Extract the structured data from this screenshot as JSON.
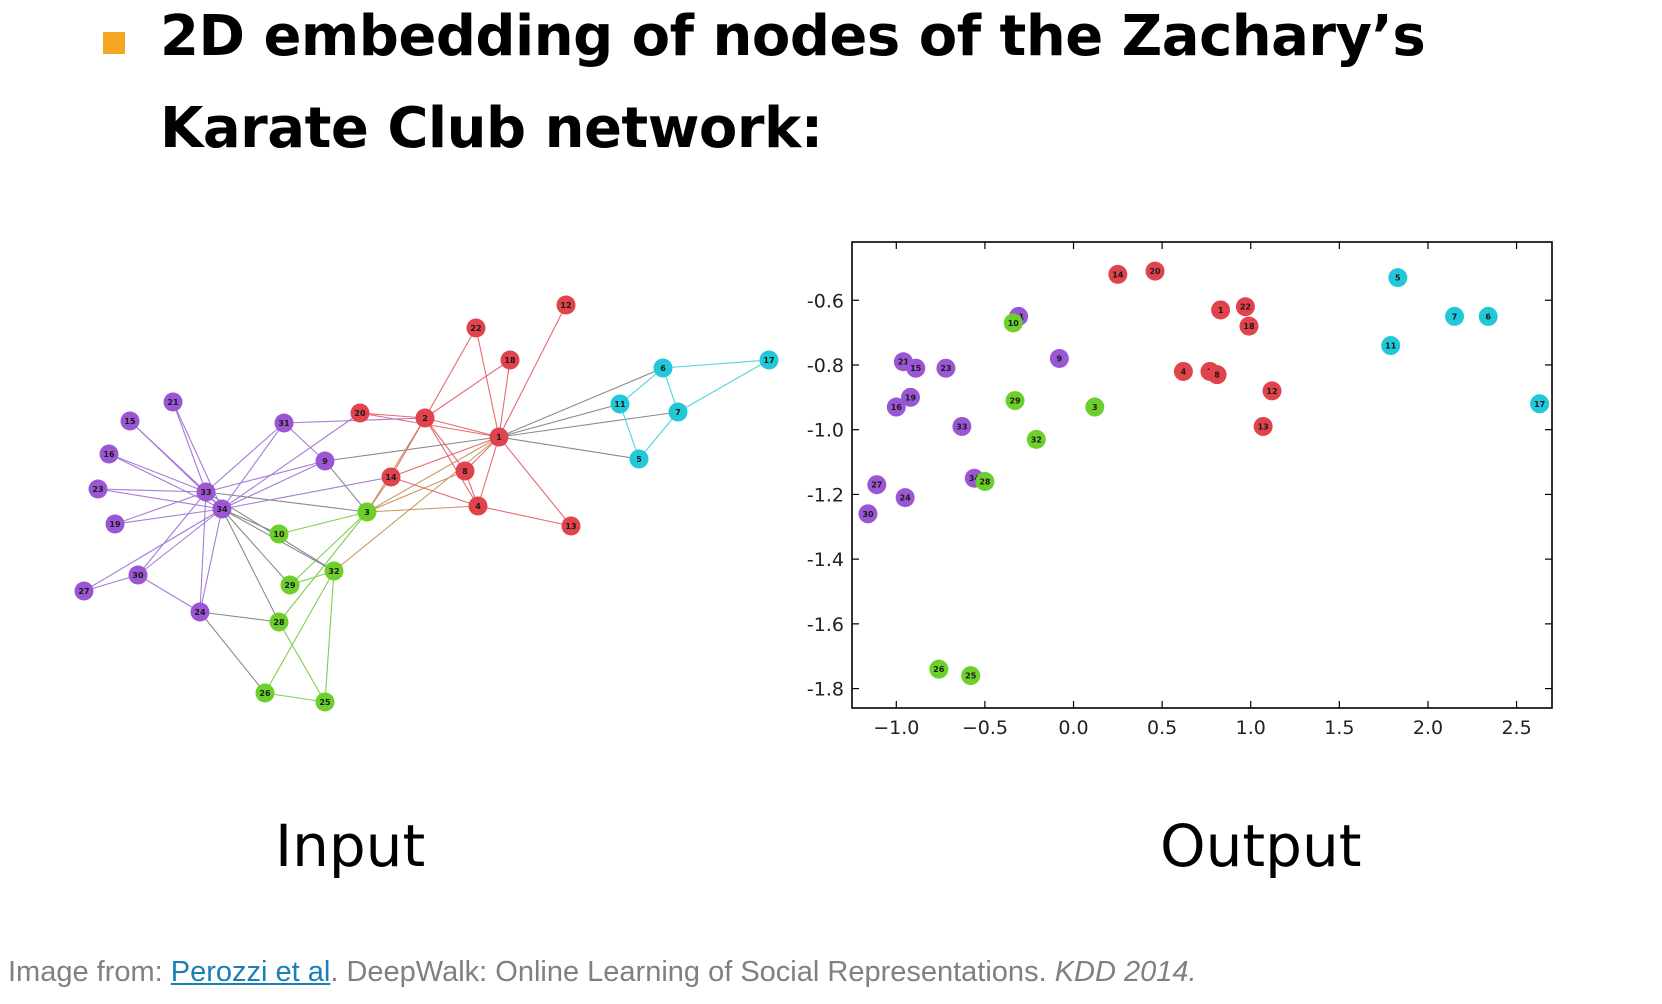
{
  "title": {
    "line1": "2D embedding of nodes of the Zachary’s",
    "line2": "Karate Club network:"
  },
  "colors": {
    "bullet": "#f5a623",
    "red": "#e0434b",
    "purple": "#9b57d3",
    "green": "#6ccf2b",
    "cyan": "#22c8d8",
    "edge_default": "#9a9a9a"
  },
  "input_graph": {
    "caption": "Input",
    "nodes": [
      {
        "id": "12",
        "group": "red"
      },
      {
        "id": "22",
        "group": "red"
      },
      {
        "id": "18",
        "group": "red"
      },
      {
        "id": "20",
        "group": "red"
      },
      {
        "id": "2",
        "group": "red"
      },
      {
        "id": "1",
        "group": "red"
      },
      {
        "id": "14",
        "group": "red"
      },
      {
        "id": "8",
        "group": "red"
      },
      {
        "id": "4",
        "group": "red"
      },
      {
        "id": "13",
        "group": "red"
      },
      {
        "id": "6",
        "group": "cyan"
      },
      {
        "id": "17",
        "group": "cyan"
      },
      {
        "id": "11",
        "group": "cyan"
      },
      {
        "id": "7",
        "group": "cyan"
      },
      {
        "id": "5",
        "group": "cyan"
      },
      {
        "id": "21",
        "group": "purple"
      },
      {
        "id": "15",
        "group": "purple"
      },
      {
        "id": "16",
        "group": "purple"
      },
      {
        "id": "23",
        "group": "purple"
      },
      {
        "id": "19",
        "group": "purple"
      },
      {
        "id": "27",
        "group": "purple"
      },
      {
        "id": "30",
        "group": "purple"
      },
      {
        "id": "24",
        "group": "purple"
      },
      {
        "id": "33",
        "group": "purple"
      },
      {
        "id": "34",
        "group": "purple"
      },
      {
        "id": "31",
        "group": "purple"
      },
      {
        "id": "9",
        "group": "purple"
      },
      {
        "id": "10",
        "group": "green"
      },
      {
        "id": "3",
        "group": "green"
      },
      {
        "id": "32",
        "group": "green"
      },
      {
        "id": "29",
        "group": "green"
      },
      {
        "id": "28",
        "group": "green"
      },
      {
        "id": "26",
        "group": "green"
      },
      {
        "id": "25",
        "group": "green"
      }
    ]
  },
  "chart_data": {
    "type": "scatter",
    "title": "",
    "caption": "Output",
    "xlabel": "",
    "ylabel": "",
    "xlim": [
      -1.25,
      2.7
    ],
    "ylim": [
      -1.86,
      -0.42
    ],
    "xticks": [
      "−1.0",
      "−0.5",
      "0.0",
      "0.5",
      "1.0",
      "1.5",
      "2.0",
      "2.5"
    ],
    "xtick_values": [
      -1.0,
      -0.5,
      0.0,
      0.5,
      1.0,
      1.5,
      2.0,
      2.5
    ],
    "yticks": [
      "-0.6",
      "-0.8",
      "-1.0",
      "-1.2",
      "-1.4",
      "-1.6",
      "-1.8"
    ],
    "ytick_values": [
      -0.6,
      -0.8,
      -1.0,
      -1.2,
      -1.4,
      -1.6,
      -1.8
    ],
    "grid": false,
    "points": [
      {
        "label": "14",
        "x": 0.25,
        "y": -0.52,
        "group": "red"
      },
      {
        "label": "20",
        "x": 0.46,
        "y": -0.51,
        "group": "red"
      },
      {
        "label": "1",
        "x": 0.83,
        "y": -0.63,
        "group": "red"
      },
      {
        "label": "22",
        "x": 0.97,
        "y": -0.62,
        "group": "red"
      },
      {
        "label": "18",
        "x": 0.99,
        "y": -0.68,
        "group": "red"
      },
      {
        "label": "4",
        "x": 0.62,
        "y": -0.82,
        "group": "red"
      },
      {
        "label": "2",
        "x": 0.77,
        "y": -0.82,
        "group": "red"
      },
      {
        "label": "8",
        "x": 0.81,
        "y": -0.83,
        "group": "red"
      },
      {
        "label": "12",
        "x": 1.12,
        "y": -0.88,
        "group": "red"
      },
      {
        "label": "13",
        "x": 1.07,
        "y": -0.99,
        "group": "red"
      },
      {
        "label": "5",
        "x": 1.83,
        "y": -0.53,
        "group": "cyan"
      },
      {
        "label": "7",
        "x": 2.15,
        "y": -0.65,
        "group": "cyan"
      },
      {
        "label": "6",
        "x": 2.34,
        "y": -0.65,
        "group": "cyan"
      },
      {
        "label": "11",
        "x": 1.79,
        "y": -0.74,
        "group": "cyan"
      },
      {
        "label": "17",
        "x": 2.63,
        "y": -0.92,
        "group": "cyan"
      },
      {
        "label": "31",
        "x": -0.31,
        "y": -0.65,
        "group": "purple"
      },
      {
        "label": "21",
        "x": -0.96,
        "y": -0.79,
        "group": "purple"
      },
      {
        "label": "15",
        "x": -0.89,
        "y": -0.81,
        "group": "purple"
      },
      {
        "label": "23",
        "x": -0.72,
        "y": -0.81,
        "group": "purple"
      },
      {
        "label": "9",
        "x": -0.08,
        "y": -0.78,
        "group": "purple"
      },
      {
        "label": "19",
        "x": -0.92,
        "y": -0.9,
        "group": "purple"
      },
      {
        "label": "16",
        "x": -1.0,
        "y": -0.93,
        "group": "purple"
      },
      {
        "label": "33",
        "x": -0.63,
        "y": -0.99,
        "group": "purple"
      },
      {
        "label": "34",
        "x": -0.56,
        "y": -1.15,
        "group": "purple"
      },
      {
        "label": "27",
        "x": -1.11,
        "y": -1.17,
        "group": "purple"
      },
      {
        "label": "24",
        "x": -0.95,
        "y": -1.21,
        "group": "purple"
      },
      {
        "label": "30",
        "x": -1.16,
        "y": -1.26,
        "group": "purple"
      },
      {
        "label": "10",
        "x": -0.34,
        "y": -0.67,
        "group": "green"
      },
      {
        "label": "29",
        "x": -0.33,
        "y": -0.91,
        "group": "green"
      },
      {
        "label": "3",
        "x": 0.12,
        "y": -0.93,
        "group": "green"
      },
      {
        "label": "32",
        "x": -0.21,
        "y": -1.03,
        "group": "green"
      },
      {
        "label": "28",
        "x": -0.5,
        "y": -1.16,
        "group": "green"
      },
      {
        "label": "26",
        "x": -0.76,
        "y": -1.74,
        "group": "green"
      },
      {
        "label": "25",
        "x": -0.58,
        "y": -1.76,
        "group": "green"
      }
    ]
  },
  "credit": {
    "prefix": "Image from: ",
    "link": "Perozzi et al",
    "middle": ". DeepWalk: Online Learning of Social Representations. ",
    "venue": "KDD 2014."
  }
}
